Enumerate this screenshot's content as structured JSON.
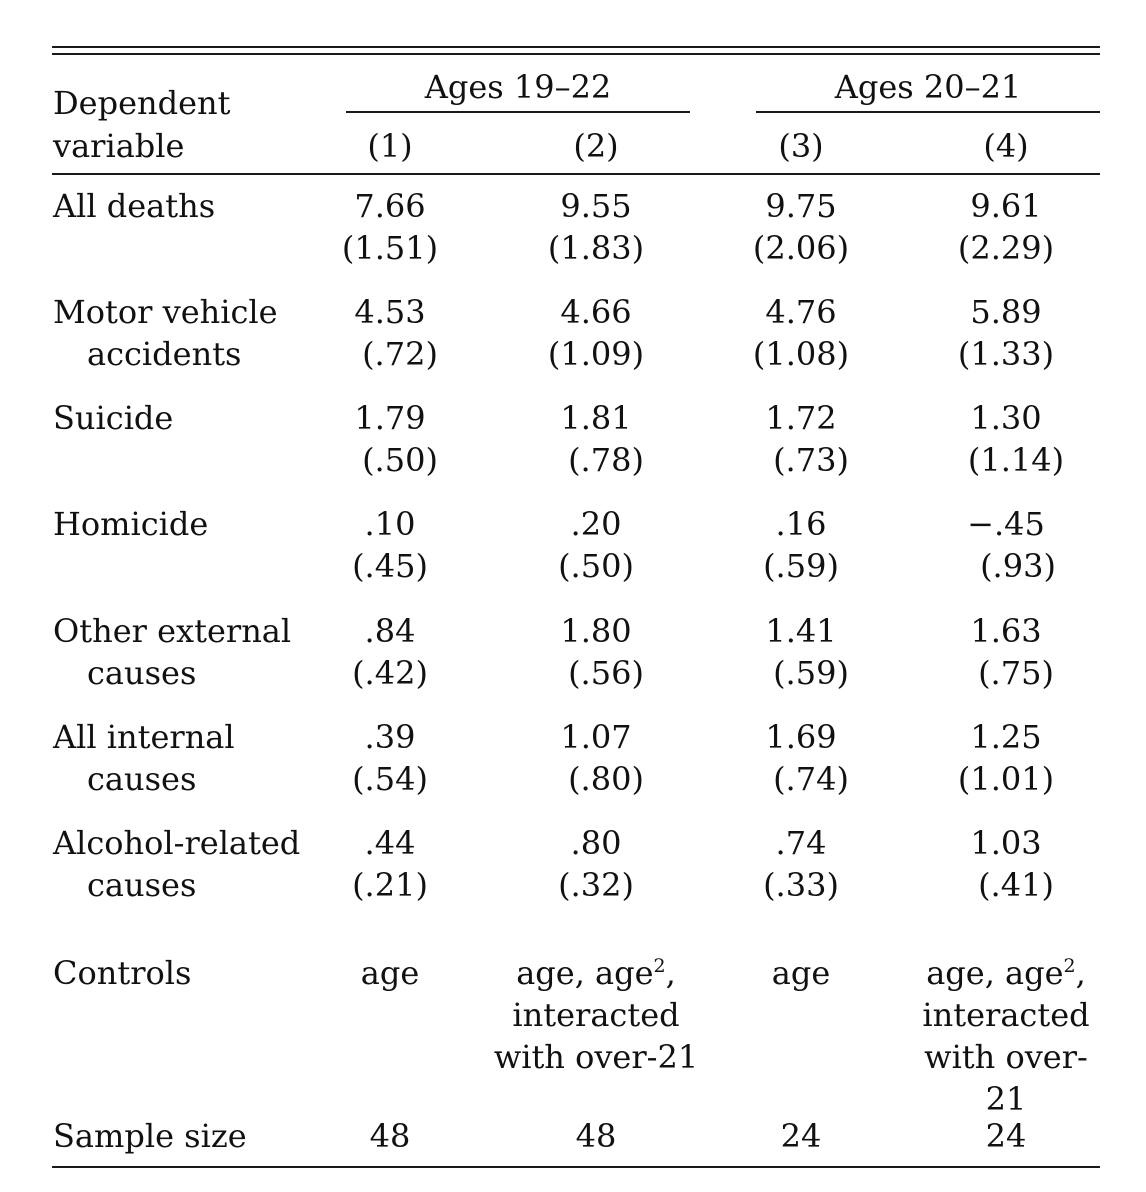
{
  "header": {
    "dependent_label_line1": "Dependent",
    "dependent_label_line2": "variable",
    "group1": "Ages 19–22",
    "group2": "Ages 20–21",
    "columns": [
      "(1)",
      "(2)",
      "(3)",
      "(4)"
    ]
  },
  "rows": [
    {
      "label1": "All deaths",
      "label2": "",
      "coef": [
        "7.66",
        "9.55",
        "9.75",
        "9.61"
      ],
      "se": [
        "(1.51)",
        "(1.83)",
        "(2.06)",
        "(2.29)"
      ]
    },
    {
      "label1": "Motor vehicle",
      "label2": "accidents",
      "coef": [
        "4.53",
        "4.66",
        "4.76",
        "5.89"
      ],
      "se": [
        "(.72)",
        "(1.09)",
        "(1.08)",
        "(1.33)"
      ]
    },
    {
      "label1": "Suicide",
      "label2": "",
      "coef": [
        "1.79",
        "1.81",
        "1.72",
        "1.30"
      ],
      "se": [
        "(.50)",
        "(.78)",
        "(.73)",
        "(1.14)"
      ]
    },
    {
      "label1": "Homicide",
      "label2": "",
      "coef": [
        ".10",
        ".20",
        ".16",
        "−.45"
      ],
      "se": [
        "(.45)",
        "(.50)",
        "(.59)",
        "(.93)"
      ]
    },
    {
      "label1": "Other external",
      "label2": "causes",
      "coef": [
        ".84",
        "1.80",
        "1.41",
        "1.63"
      ],
      "se": [
        "(.42)",
        "(.56)",
        "(.59)",
        "(.75)"
      ]
    },
    {
      "label1": "All internal",
      "label2": "causes",
      "coef": [
        ".39",
        "1.07",
        "1.69",
        "1.25"
      ],
      "se": [
        "(.54)",
        "(.80)",
        "(.74)",
        "(1.01)"
      ]
    },
    {
      "label1": "Alcohol-related",
      "label2": "causes",
      "coef": [
        ".44",
        ".80",
        ".74",
        "1.03"
      ],
      "se": [
        "(.21)",
        "(.32)",
        "(.33)",
        "(.41)"
      ]
    }
  ],
  "controls": {
    "label": "Controls",
    "col1": "age",
    "col2_line1_pre": "age, age",
    "col2_sup": "2",
    "col2_line1_post": ",",
    "col2_line2": "interacted",
    "col2_line3": "with over-21",
    "col3": "age",
    "col4_line1_pre": "age, age",
    "col4_sup": "2",
    "col4_line1_post": ",",
    "col4_line2": "interacted",
    "col4_line3": "with over-21"
  },
  "sample_size": {
    "label": "Sample size",
    "values": [
      "48",
      "48",
      "24",
      "24"
    ]
  }
}
